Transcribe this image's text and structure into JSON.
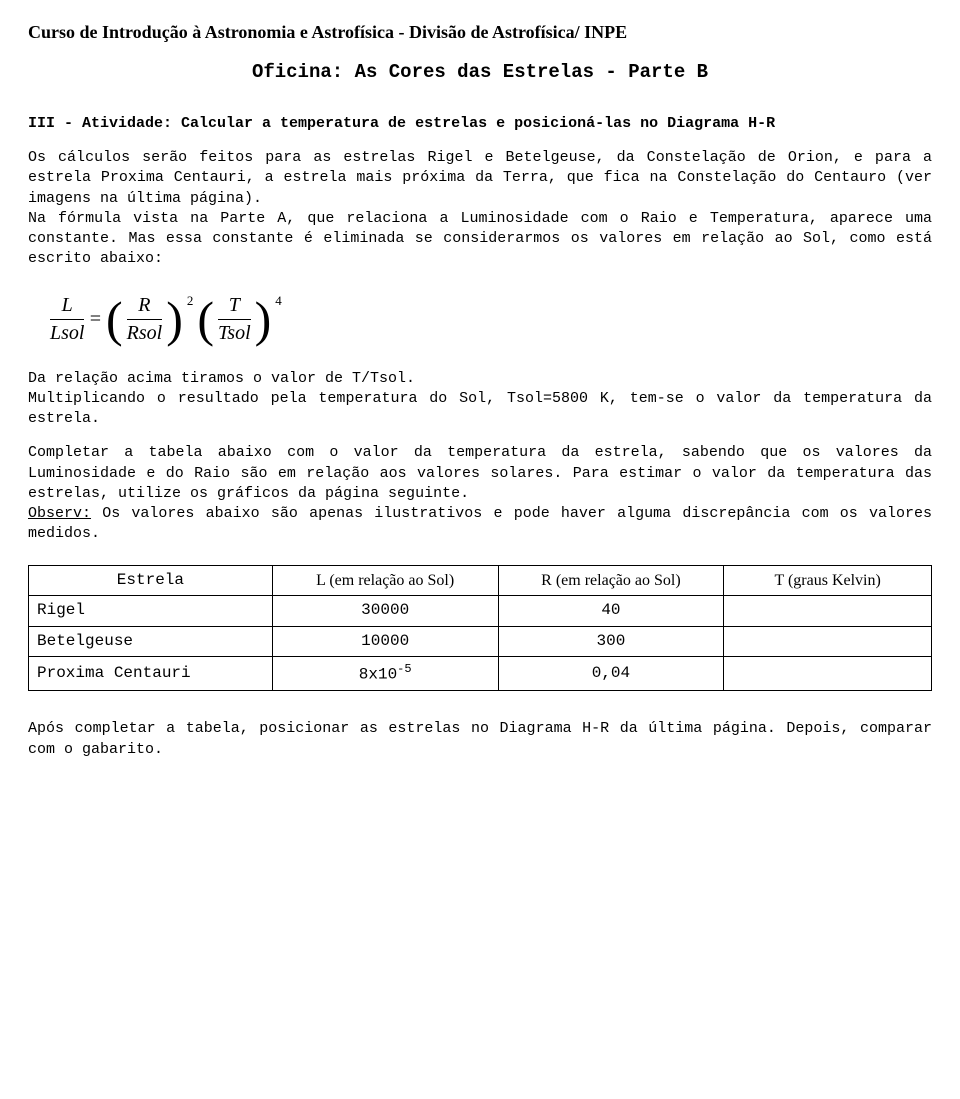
{
  "header": "Curso de Introdução à Astronomia e Astrofísica  -  Divisão de Astrofísica/ INPE",
  "title": "Oficina: As Cores das Estrelas  -  Parte B",
  "section_header": "III - Atividade: Calcular a temperatura de estrelas e posicioná-las no Diagrama H-R",
  "para1": "Os cálculos serão feitos para as estrelas Rigel e Betelgeuse, da Constelação de Orion, e para a estrela Proxima Centauri, a estrela mais próxima da Terra, que fica na Constelação do Centauro (ver imagens na última página).",
  "para2": "Na fórmula vista na Parte A, que relaciona a Luminosidade com o Raio e Temperatura, aparece uma constante. Mas essa constante é eliminada se considerarmos os valores em relação ao Sol, como está escrito abaixo:",
  "formula": {
    "lhs_num": "L",
    "lhs_den": "Lsol",
    "eq": "=",
    "t1_num": "R",
    "t1_den": "Rsol",
    "t1_exp": "2",
    "t2_num": "T",
    "t2_den": "Tsol",
    "t2_exp": "4",
    "paren_l": "(",
    "paren_r": ")"
  },
  "para3a": "Da relação acima tiramos o valor de T/Tsol.",
  "para3b": "Multiplicando o resultado pela temperatura do Sol, Tsol=5800 K, tem-se o valor da temperatura da estrela.",
  "para4": "Completar a tabela abaixo com o valor da temperatura da estrela, sabendo que os valores da Luminosidade e do Raio são em relação aos valores solares. Para estimar o valor da temperatura das estrelas, utilize os gráficos da página seguinte.",
  "obs_label": "Observ:",
  "obs_text": "  Os valores abaixo são apenas ilustrativos e pode haver alguma discrepância com os valores medidos.",
  "table": {
    "columns": [
      "Estrela",
      "L  (em relação ao Sol)",
      "R  (em relação ao Sol)",
      "T  (graus Kelvin)"
    ],
    "col_widths": [
      "27%",
      "25%",
      "25%",
      "23%"
    ],
    "header_font": "Times New Roman",
    "body_font": "Courier New",
    "border_color": "#000000",
    "rows": [
      {
        "name": "Rigel",
        "l": "30000",
        "r": "40",
        "t": ""
      },
      {
        "name": "Betelgeuse",
        "l": "10000",
        "r": "300",
        "t": ""
      },
      {
        "name": "Proxima Centauri",
        "l_base": "8x10",
        "l_exp": "-5",
        "r": "0,04",
        "t": ""
      }
    ]
  },
  "para5": "Após completar a tabela, posicionar as estrelas no Diagrama H-R da última página. Depois, comparar com o gabarito.",
  "colors": {
    "text": "#000000",
    "background": "#ffffff"
  },
  "typography": {
    "header_family": "Times New Roman",
    "header_size_pt": 14,
    "body_family": "Courier New",
    "body_size_pt": 12,
    "formula_family": "Times New Roman"
  }
}
